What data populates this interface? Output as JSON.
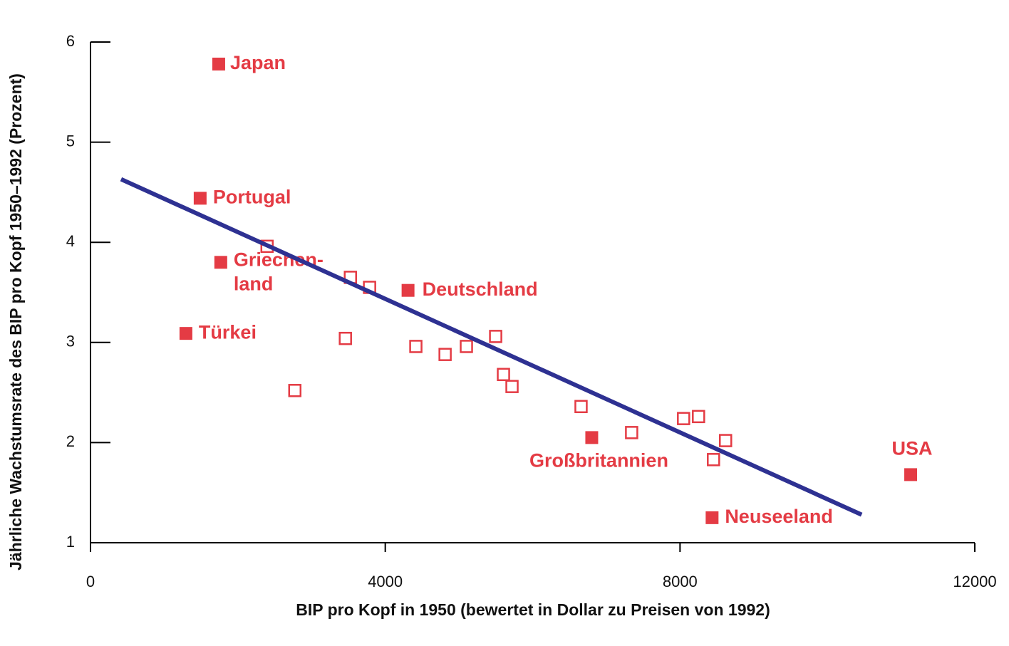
{
  "chart_data": {
    "type": "scatter",
    "ylabel": "Jährliche Wachstumsrate des BIP pro Kopf 1950–1992 (Prozent)",
    "xlabel": "BIP pro Kopf in 1950 (bewertet in Dollar zu Preisen von 1992)",
    "xlim": [
      0,
      12000
    ],
    "ylim": [
      1,
      6
    ],
    "xticks": [
      0,
      4000,
      8000,
      12000
    ],
    "yticks": [
      1,
      2,
      3,
      4,
      5,
      6
    ],
    "series": [
      {
        "style": "filled",
        "color": "#e43b44",
        "x": [
          1740,
          1488,
          1768,
          4309,
          1295,
          6802,
          8435,
          11130
        ],
        "values": [
          5.78,
          4.44,
          3.8,
          3.52,
          3.09,
          2.05,
          1.25,
          1.68
        ],
        "labels": [
          [
            "Japan"
          ],
          [
            "Portugal"
          ],
          [
            "Griechen-",
            "land"
          ],
          [
            "Deutschland"
          ],
          [
            "Türkei"
          ],
          [
            "Großbritannien"
          ],
          [
            "Neuseeland"
          ],
          [
            "USA"
          ]
        ]
      },
      {
        "style": "open",
        "color": "#e43b44",
        "x": [
          2396,
          3527,
          3787,
          3459,
          2773,
          4415,
          4812,
          5101,
          5498,
          5604,
          5720,
          6657,
          7343,
          8048,
          8251,
          8618,
          8454
        ],
        "values": [
          3.96,
          3.65,
          3.55,
          3.04,
          2.52,
          2.96,
          2.88,
          2.96,
          3.06,
          2.68,
          2.56,
          2.36,
          2.1,
          2.24,
          2.26,
          2.02,
          1.83
        ]
      },
      {
        "style": "line",
        "color": "#2e3192",
        "x": [
          415,
          10464
        ],
        "values": [
          4.63,
          1.28
        ]
      }
    ]
  }
}
